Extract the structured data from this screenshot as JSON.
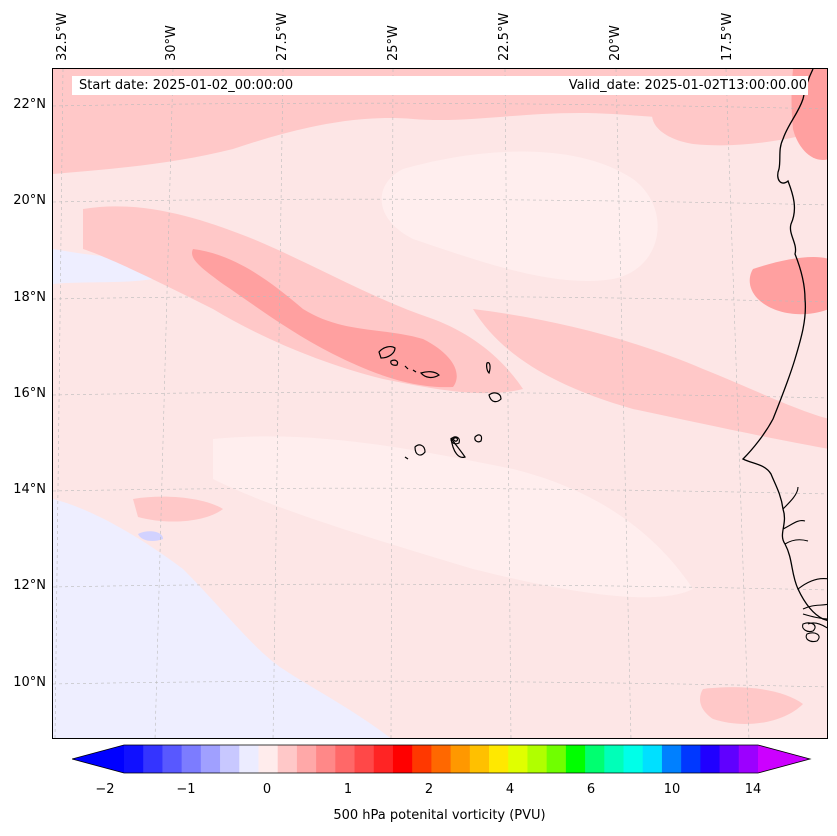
{
  "map": {
    "region": "Eastern Atlantic / Cape Verde",
    "lon_labels": [
      "32.5°W",
      "30°W",
      "27.5°W",
      "25°W",
      "22.5°W",
      "20°W",
      "17.5°W"
    ],
    "lat_labels": [
      "22°N",
      "20°N",
      "18°N",
      "16°N",
      "14°N",
      "12°N",
      "10°N"
    ],
    "start_date": "Start date: 2025-01-02_00:00:00",
    "valid_date": "Valid_date: 2025-01-02T13:00:00.00",
    "field_background_color": "#fde6e6",
    "gridlines": true,
    "coastline_color": "#000000"
  },
  "colorbar": {
    "label": "500 hPa potenital vorticity (PVU)",
    "tick_labels": [
      "−2",
      "−1",
      "0",
      "1",
      "2",
      "4",
      "6",
      "10",
      "14"
    ],
    "colors": [
      "#1010ff",
      "#3434ff",
      "#5858ff",
      "#7c7cff",
      "#a0a0ff",
      "#c8c8ff",
      "#ececff",
      "#ffecec",
      "#ffc8c8",
      "#ffa8a8",
      "#ff8888",
      "#ff6868",
      "#ff4848",
      "#ff2424",
      "#ff0000",
      "#ff3800",
      "#ff6800",
      "#ff9800",
      "#ffc000",
      "#ffe800",
      "#e0ff00",
      "#b0ff00",
      "#70ff00",
      "#00ff00",
      "#00ff70",
      "#00ffb8",
      "#00ffe8",
      "#00e0ff",
      "#0080ff",
      "#0038ff",
      "#2000ff",
      "#6000ff",
      "#9c00ff"
    ],
    "under_color": "#0000ff",
    "over_color": "#cc00ff"
  }
}
